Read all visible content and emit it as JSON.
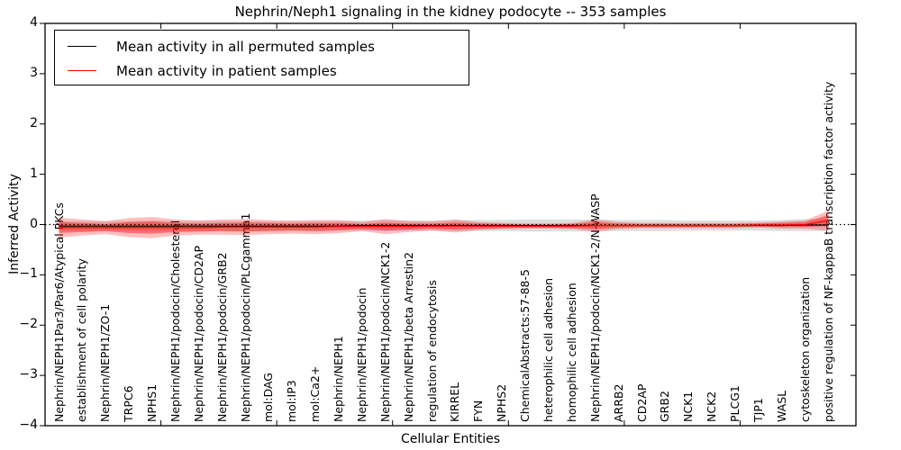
{
  "chart_data": {
    "type": "line",
    "title": "Nephrin/Neph1 signaling in the kidney podocyte -- 353 samples",
    "xlabel": "Cellular Entities",
    "ylabel": "Inferred Activity",
    "ylim": [
      -4,
      4
    ],
    "yticks": [
      4,
      3,
      2,
      1,
      0,
      -1,
      -2,
      -3,
      -4
    ],
    "grid": false,
    "legend_position": "upper left",
    "zero_line": true,
    "categories": [
      "Nephrin/NEPH1Par3/Par6/Atypical PKCs",
      "establishment of cell polarity",
      "Nephrin/NEPH1/ZO-1",
      "TRPC6",
      "NPHS1",
      "Nephrin/NEPH1/podocin/Cholesterol",
      "Nephrin/NEPH1/podocin/CD2AP",
      "Nephrin/NEPH1/podocin/GRB2",
      "Nephrin/NEPH1/podocin/PLCgamma1",
      "mol:DAG",
      "mol:IP3",
      "mol:Ca2+",
      "Nephrin/NEPH1",
      "Nephrin/NEPH1/podocin",
      "Nephrin/NEPH1/podocin/NCK1-2",
      "Nephrin/NEPH1/beta Arrestin2",
      "regulation of endocytosis",
      "KIRREL",
      "FYN",
      "NPHS2",
      "ChemicalAbstracts:57-88-5",
      "heterophilic cell adhesion",
      "homophilic cell adhesion",
      "Nephrin/NEPH1/podocin/NCK1-2/N-WASP",
      "ARRB2",
      "CD2AP",
      "GRB2",
      "NCK1",
      "NCK2",
      "PLCG1",
      "TJP1",
      "WASL",
      "cytoskeleton organization",
      "positive regulation of NF-kappaB transcription factor activity"
    ],
    "series": [
      {
        "name": "Mean activity in all permuted samples",
        "color": "#000000",
        "band_color": "rgba(0,0,0,0.13)",
        "values": [
          -0.03,
          -0.03,
          -0.03,
          -0.03,
          -0.03,
          -0.03,
          -0.03,
          -0.03,
          -0.03,
          -0.03,
          -0.03,
          -0.03,
          -0.03,
          -0.02,
          -0.02,
          -0.02,
          -0.02,
          -0.02,
          -0.02,
          -0.02,
          -0.02,
          -0.02,
          -0.02,
          -0.02,
          -0.02,
          -0.02,
          -0.02,
          -0.02,
          -0.02,
          -0.02,
          -0.02,
          -0.02,
          -0.01,
          -0.01
        ],
        "band_half_width": [
          0.1,
          0.1,
          0.09,
          0.1,
          0.11,
          0.1,
          0.1,
          0.1,
          0.1,
          0.09,
          0.09,
          0.1,
          0.1,
          0.1,
          0.11,
          0.1,
          0.1,
          0.11,
          0.11,
          0.11,
          0.12,
          0.12,
          0.12,
          0.12,
          0.11,
          0.11,
          0.11,
          0.1,
          0.1,
          0.1,
          0.1,
          0.11,
          0.12,
          0.12
        ]
      },
      {
        "name": "Mean activity in patient samples",
        "color": "#ff0000",
        "band_outer_color": "rgba(255,0,0,0.25)",
        "band_inner_color": "rgba(255,0,0,0.40)",
        "values": [
          -0.06,
          -0.06,
          -0.06,
          -0.06,
          -0.06,
          -0.06,
          -0.06,
          -0.05,
          -0.05,
          -0.05,
          -0.05,
          -0.05,
          -0.04,
          -0.04,
          -0.04,
          -0.04,
          -0.03,
          -0.03,
          -0.03,
          -0.03,
          -0.03,
          -0.03,
          -0.03,
          -0.02,
          -0.02,
          -0.02,
          -0.02,
          -0.02,
          -0.02,
          -0.02,
          -0.01,
          -0.01,
          0.0,
          0.08
        ],
        "band_outer_half_width": [
          0.2,
          0.16,
          0.13,
          0.19,
          0.21,
          0.16,
          0.14,
          0.15,
          0.16,
          0.14,
          0.13,
          0.14,
          0.13,
          0.09,
          0.15,
          0.11,
          0.09,
          0.13,
          0.08,
          0.06,
          0.05,
          0.05,
          0.06,
          0.12,
          0.07,
          0.05,
          0.05,
          0.05,
          0.05,
          0.05,
          0.05,
          0.07,
          0.08,
          0.2
        ],
        "band_inner_half_width": [
          0.11,
          0.09,
          0.07,
          0.11,
          0.12,
          0.09,
          0.08,
          0.08,
          0.09,
          0.08,
          0.07,
          0.08,
          0.07,
          0.05,
          0.08,
          0.06,
          0.05,
          0.07,
          0.05,
          0.04,
          0.03,
          0.03,
          0.04,
          0.07,
          0.04,
          0.03,
          0.03,
          0.03,
          0.03,
          0.03,
          0.03,
          0.04,
          0.05,
          0.11
        ]
      }
    ]
  }
}
